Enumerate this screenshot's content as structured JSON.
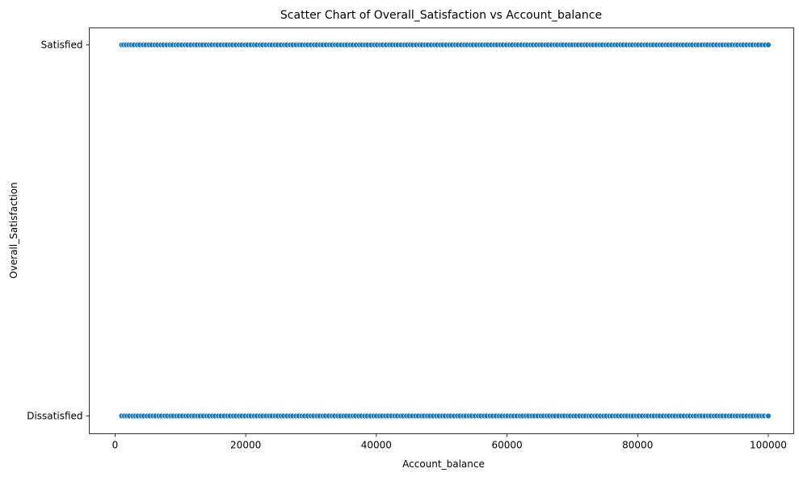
{
  "chart_data": {
    "type": "scatter",
    "title": "Scatter Chart of Overall_Satisfaction vs Account_balance",
    "xlabel": "Account_balance",
    "ylabel": "Overall_Satisfaction",
    "xlim": [
      -3950,
      103900
    ],
    "x_ticks": [
      0,
      20000,
      40000,
      60000,
      80000,
      100000
    ],
    "x_tick_labels": [
      "0",
      "20000",
      "40000",
      "60000",
      "80000",
      "100000"
    ],
    "y_categories": [
      "Dissatisfied",
      "Satisfied"
    ],
    "grid": false,
    "legend": "none",
    "point_color": "#1f77b4",
    "point_edge_color": "#ffffff",
    "series": [
      {
        "category": "Satisfied",
        "x_range": [
          1000,
          100000
        ],
        "x": [
          1000,
          1300,
          1700,
          2100,
          2500,
          2900,
          3400,
          3800,
          4300,
          4700,
          5200,
          5600,
          6100,
          6500,
          7000,
          7400,
          7900,
          8400,
          8800,
          9300,
          9700,
          10200,
          10700,
          11100,
          11600,
          12100,
          12500,
          13000,
          13400,
          13900,
          14400,
          14800,
          15300,
          15700,
          16200,
          16700,
          17100,
          17600,
          18000,
          18500,
          19000,
          19400,
          19900,
          20300,
          20800,
          21300,
          21700,
          22200,
          22600,
          23100,
          23600,
          24000,
          24500,
          24900,
          25400,
          25900,
          26300,
          26800,
          27200,
          27700,
          28200,
          28600,
          29100,
          29500,
          30000,
          30500,
          30900,
          31400,
          31800,
          32300,
          32800,
          33200,
          33700,
          34100,
          34600,
          35100,
          35500,
          36000,
          36400,
          36900,
          37400,
          37800,
          38300,
          38700,
          39200,
          39700,
          40100,
          40600,
          41000,
          41500,
          42000,
          42400,
          42900,
          43300,
          43800,
          44300,
          44700,
          45200,
          45600,
          46100,
          46600,
          47000,
          47500,
          47900,
          48400,
          48900,
          49300,
          49800,
          50200,
          50700,
          51200,
          51600,
          52100,
          52500,
          53000,
          53500,
          53900,
          54400,
          54800,
          55300,
          55800,
          56200,
          56700,
          57100,
          57600,
          58100,
          58500,
          59000,
          59400,
          59900,
          60400,
          60800,
          61300,
          61700,
          62200,
          62700,
          63100,
          63600,
          64000,
          64500,
          65000,
          65400,
          65900,
          66300,
          66800,
          67300,
          67700,
          68200,
          68600,
          69100,
          69600,
          70000,
          70500,
          70900,
          71400,
          71900,
          72300,
          72800,
          73200,
          73700,
          74200,
          74600,
          75100,
          75500,
          76000,
          76500,
          76900,
          77400,
          77800,
          78300,
          78800,
          79200,
          79700,
          80100,
          80600,
          81100,
          81500,
          82000,
          82400,
          82900,
          83400,
          83800,
          84300,
          84700,
          85200,
          85700,
          86100,
          86600,
          87000,
          87500,
          88000,
          88400,
          88900,
          89300,
          89800,
          90300,
          90700,
          91200,
          91600,
          92100,
          92600,
          93000,
          93500,
          93900,
          94400,
          94900,
          95300,
          95800,
          96200,
          96700,
          97200,
          97600,
          98100,
          98500,
          99000,
          99500,
          100000
        ]
      },
      {
        "category": "Dissatisfied",
        "x_range": [
          1000,
          100000
        ],
        "x": [
          1000,
          1400,
          1800,
          2200,
          2700,
          3100,
          3500,
          4000,
          4400,
          4900,
          5300,
          5800,
          6200,
          6700,
          7100,
          7600,
          8000,
          8500,
          8900,
          9400,
          9800,
          10300,
          10800,
          11200,
          11700,
          12100,
          12600,
          13000,
          13500,
          14000,
          14400,
          14900,
          15300,
          15800,
          16200,
          16700,
          17200,
          17600,
          18100,
          18500,
          19000,
          19400,
          19900,
          20400,
          20800,
          21300,
          21700,
          22200,
          22600,
          23100,
          23600,
          24000,
          24500,
          24900,
          25400,
          25800,
          26300,
          26800,
          27200,
          27700,
          28100,
          28600,
          29000,
          29500,
          30000,
          30400,
          30900,
          31300,
          31800,
          32200,
          32700,
          33200,
          33600,
          34100,
          34500,
          35000,
          35400,
          35900,
          36400,
          36800,
          37300,
          37700,
          38200,
          38600,
          39100,
          39600,
          40000,
          40500,
          40900,
          41400,
          41800,
          42300,
          42800,
          43200,
          43700,
          44100,
          44600,
          45000,
          45500,
          46000,
          46400,
          46900,
          47300,
          47800,
          48200,
          48700,
          49200,
          49600,
          50100,
          50500,
          51000,
          51400,
          51900,
          52400,
          52800,
          53300,
          53700,
          54200,
          54600,
          55100,
          55600,
          56000,
          56500,
          56900,
          57400,
          57800,
          58300,
          58800,
          59200,
          59700,
          60100,
          60600,
          61000,
          61500,
          62000,
          62400,
          62900,
          63300,
          63800,
          64200,
          64700,
          65200,
          65600,
          66100,
          66500,
          67000,
          67400,
          67900,
          68400,
          68800,
          69300,
          69700,
          70200,
          70600,
          71100,
          71600,
          72000,
          72500,
          72900,
          73400,
          73800,
          74300,
          74800,
          75200,
          75700,
          76100,
          76600,
          77000,
          77500,
          78000,
          78400,
          78900,
          79300,
          79800,
          80200,
          80700,
          81200,
          81600,
          82100,
          82500,
          83000,
          83400,
          83900,
          84400,
          84800,
          85300,
          85700,
          86200,
          86600,
          87100,
          87600,
          88000,
          88500,
          88900,
          89400,
          89800,
          90300,
          90800,
          91200,
          91700,
          92100,
          92600,
          93000,
          93500,
          94000,
          94400,
          94900,
          95300,
          95800,
          96200,
          96700,
          97200,
          97600,
          98100,
          98500,
          99000,
          99400,
          99900,
          100000
        ]
      }
    ]
  }
}
